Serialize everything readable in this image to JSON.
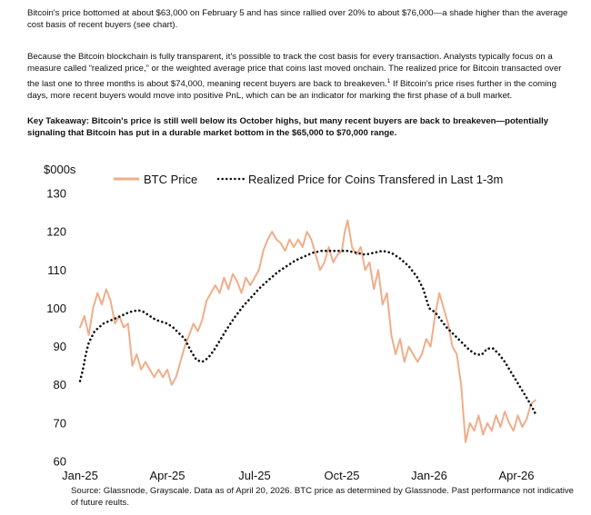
{
  "text": {
    "para1": "Bitcoin's price bottomed at about $63,000 on February 5 and has since rallied over 20% to about $76,000—a shade higher than the average cost basis of recent buyers (see chart).",
    "para2_a": "Because the Bitcoin blockchain is fully transparent, it's possible to track the cost basis for every transaction. Analysts typically focus on a measure called “realized price,” or the weighted average price that coins last moved onchain. The realized price for Bitcoin transacted over the last one to three months is about $74,000, meaning recent buyers are back to breakeven.",
    "para2_sup": "1",
    "para2_b": " If Bitcoin's price rises further in the coming days, more recent buyers would move into positive PnL, which can be an indicator for marking the first phase of a bull market.",
    "takeaway": "Key Takeaway: Bitcoin's price is still well below its October highs, but many recent buyers are back to breakeven—potentially signaling that Bitcoin has put in a durable market bottom in the $65,000 to $70,000 range.",
    "source": "Source: Glassnode, Grayscale. Data as of April 20, 2026. BTC price as determined by Glassnode. Past performance not indicative of future reults."
  },
  "chart_data": {
    "type": "line",
    "ylabel": "$000s",
    "ylim": [
      60,
      130
    ],
    "yticks": [
      60,
      70,
      80,
      90,
      100,
      110,
      120,
      130
    ],
    "xlim": [
      0,
      16.0
    ],
    "xticks": [
      {
        "x": 0,
        "label": "Jan-25"
      },
      {
        "x": 3,
        "label": "Apr-25"
      },
      {
        "x": 6,
        "label": "Jul-25"
      },
      {
        "x": 9,
        "label": "Oct-25"
      },
      {
        "x": 12,
        "label": "Jan-26"
      },
      {
        "x": 15,
        "label": "Apr-26"
      }
    ],
    "legend": [
      {
        "name": "BTC Price",
        "style": "line"
      },
      {
        "name": "Realized Price for Coins Transfered in Last 1-3m",
        "style": "dotted"
      }
    ],
    "series": [
      {
        "name": "BTC Price",
        "color": "#f0ad8a",
        "x": [
          0,
          0.15,
          0.3,
          0.45,
          0.6,
          0.75,
          0.9,
          1.05,
          1.2,
          1.35,
          1.5,
          1.65,
          1.8,
          1.95,
          2.1,
          2.25,
          2.4,
          2.55,
          2.7,
          2.85,
          3.0,
          3.15,
          3.3,
          3.45,
          3.6,
          3.75,
          3.9,
          4.05,
          4.2,
          4.35,
          4.5,
          4.65,
          4.8,
          4.95,
          5.1,
          5.25,
          5.4,
          5.55,
          5.7,
          5.85,
          6.0,
          6.15,
          6.3,
          6.45,
          6.6,
          6.75,
          6.9,
          7.05,
          7.2,
          7.35,
          7.5,
          7.65,
          7.8,
          7.95,
          8.1,
          8.25,
          8.4,
          8.55,
          8.7,
          8.85,
          9.0,
          9.1,
          9.2,
          9.35,
          9.5,
          9.65,
          9.8,
          9.95,
          10.1,
          10.25,
          10.4,
          10.55,
          10.7,
          10.85,
          11.0,
          11.15,
          11.3,
          11.45,
          11.6,
          11.75,
          11.9,
          12.05,
          12.2,
          12.35,
          12.5,
          12.65,
          12.8,
          12.95,
          13.1,
          13.25,
          13.4,
          13.55,
          13.7,
          13.85,
          14.0,
          14.15,
          14.3,
          14.45,
          14.6,
          14.75,
          14.9,
          15.05,
          15.2,
          15.35,
          15.5,
          15.65
        ],
        "values": [
          95,
          98,
          93,
          100,
          104,
          101,
          105,
          102,
          96,
          98,
          95,
          96,
          85,
          88,
          84,
          86,
          84,
          82,
          84,
          82,
          84,
          80,
          82,
          86,
          90,
          93,
          96,
          94,
          97,
          102,
          104,
          106,
          104,
          108,
          105,
          109,
          107,
          104,
          108,
          106,
          108,
          110,
          115,
          118,
          120,
          118,
          117,
          115,
          118,
          116,
          118,
          116,
          120,
          118,
          114,
          110,
          112,
          116,
          112,
          114,
          115,
          120,
          123,
          116,
          114,
          116,
          110,
          112,
          105,
          110,
          101,
          104,
          93,
          88,
          92,
          86,
          90,
          88,
          86,
          88,
          92,
          90,
          98,
          104,
          100,
          96,
          90,
          88,
          80,
          65,
          70,
          68,
          72,
          67,
          70,
          68,
          72,
          69,
          73,
          70,
          68,
          72,
          69,
          71,
          75,
          76
        ]
      },
      {
        "name": "Realized Price for Coins Transfered in Last 1-3m",
        "color": "#111111",
        "x": [
          0,
          0.1,
          0.2,
          0.3,
          0.5,
          0.8,
          1.1,
          1.4,
          1.7,
          2.0,
          2.2,
          2.4,
          2.6,
          2.8,
          3.0,
          3.2,
          3.4,
          3.6,
          3.8,
          4.0,
          4.2,
          4.4,
          4.6,
          4.8,
          5.0,
          5.3,
          5.6,
          5.9,
          6.2,
          6.5,
          6.8,
          7.1,
          7.4,
          7.7,
          8.0,
          8.3,
          8.6,
          8.9,
          9.2,
          9.5,
          9.8,
          10.1,
          10.4,
          10.7,
          11.0,
          11.3,
          11.6,
          11.8,
          12.0,
          12.2,
          12.4,
          12.6,
          12.8,
          13.0,
          13.2,
          13.4,
          13.6,
          13.8,
          14.0,
          14.2,
          14.4,
          14.6,
          14.8,
          15.0,
          15.2,
          15.4,
          15.55,
          15.65
        ],
        "values": [
          81,
          84,
          88,
          91,
          94,
          96,
          97,
          98,
          99,
          99.5,
          99,
          98,
          97,
          96.5,
          96,
          95,
          93.5,
          92,
          89,
          86.5,
          86,
          87,
          89,
          91.5,
          94,
          97.5,
          100.5,
          103,
          105.5,
          107.5,
          109.5,
          111,
          112.5,
          113.5,
          114.5,
          115,
          115,
          115,
          115,
          114.5,
          114,
          114.5,
          115,
          114.5,
          113,
          111,
          108,
          105,
          100,
          99,
          97,
          95,
          93.5,
          92,
          90.5,
          89,
          88,
          87.8,
          89.5,
          89.5,
          88,
          86,
          83.5,
          81,
          78.5,
          76,
          74,
          72.5
        ]
      }
    ]
  }
}
